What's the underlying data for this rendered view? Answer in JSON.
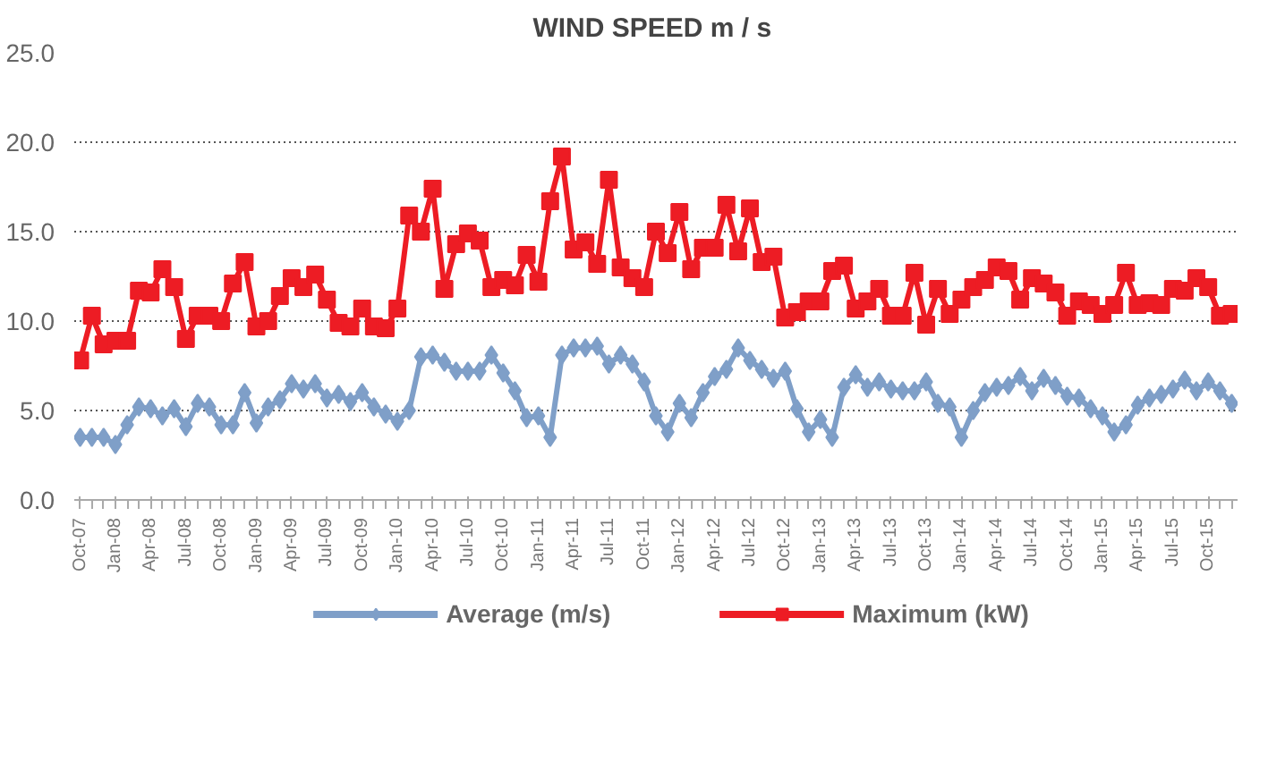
{
  "chart_data": {
    "type": "line",
    "title": "WIND SPEED  m / s",
    "categories": [
      "Oct-07",
      null,
      null,
      "Jan-08",
      null,
      null,
      "Apr-08",
      null,
      null,
      "Jul-08",
      null,
      null,
      "Oct-08",
      null,
      null,
      "Jan-09",
      null,
      null,
      "Apr-09",
      null,
      null,
      "Jul-09",
      null,
      null,
      "Oct-09",
      null,
      null,
      "Jan-10",
      null,
      null,
      "Apr-10",
      null,
      null,
      "Jul-10",
      null,
      null,
      "Oct-10",
      null,
      null,
      "Jan-11",
      null,
      null,
      "Apr-11",
      null,
      null,
      "Jul-11",
      null,
      null,
      "Oct-11",
      null,
      null,
      "Jan-12",
      null,
      null,
      "Apr-12",
      null,
      null,
      "Jul-12",
      null,
      null,
      "Oct-12",
      null,
      null,
      "Jan-13",
      null,
      null,
      "Apr-13",
      null,
      null,
      "Jul-13",
      null,
      null,
      "Oct-13",
      null,
      null,
      "Jan-14",
      null,
      null,
      "Apr-14",
      null,
      null,
      "Jul-14",
      null,
      null,
      "Oct-14",
      null,
      null,
      "Jan-15",
      null,
      null,
      "Apr-15",
      null,
      null,
      "Jul-15",
      null,
      null,
      "Oct-15",
      null,
      null
    ],
    "series": [
      {
        "name": "Average (m/s)",
        "color": "#7f9fc8",
        "marker": "diamond",
        "values": [
          3.5,
          3.5,
          3.5,
          3.1,
          4.2,
          5.2,
          5.1,
          4.7,
          5.1,
          4.1,
          5.4,
          5.2,
          4.2,
          4.2,
          6.0,
          4.3,
          5.2,
          5.6,
          6.5,
          6.2,
          6.5,
          5.7,
          5.9,
          5.5,
          6.0,
          5.2,
          4.8,
          4.4,
          5.0,
          8.0,
          8.1,
          7.7,
          7.2,
          7.2,
          7.2,
          8.1,
          7.1,
          6.1,
          4.6,
          4.7,
          3.5,
          8.1,
          8.5,
          8.5,
          8.6,
          7.6,
          8.1,
          7.6,
          6.6,
          4.7,
          3.8,
          5.4,
          4.6,
          6.0,
          6.9,
          7.3,
          8.5,
          7.8,
          7.3,
          6.8,
          7.2,
          5.1,
          3.8,
          4.5,
          3.5,
          6.3,
          7.0,
          6.3,
          6.6,
          6.2,
          6.1,
          6.1,
          6.6,
          5.4,
          5.2,
          3.5,
          5.0,
          6.0,
          6.3,
          6.4,
          6.9,
          6.1,
          6.8,
          6.4,
          5.8,
          5.7,
          5.1,
          4.7,
          3.8,
          4.2,
          5.3,
          5.7,
          5.9,
          6.2,
          6.7,
          6.1,
          6.6,
          6.1,
          5.4
        ]
      },
      {
        "name": "Maximum (kW)",
        "color": "#ed1c24",
        "marker": "square",
        "values": [
          7.8,
          10.3,
          8.7,
          8.9,
          8.9,
          11.7,
          11.6,
          12.9,
          11.9,
          9.0,
          10.3,
          10.3,
          10.0,
          12.1,
          13.3,
          9.7,
          10.0,
          11.4,
          12.4,
          11.9,
          12.6,
          11.2,
          9.9,
          9.7,
          10.7,
          9.7,
          9.6,
          10.7,
          15.9,
          15.0,
          17.4,
          11.8,
          14.3,
          14.9,
          14.5,
          11.9,
          12.3,
          12.0,
          13.7,
          12.2,
          16.7,
          19.2,
          14.0,
          14.4,
          13.2,
          17.9,
          13.0,
          12.4,
          11.9,
          15.0,
          13.8,
          16.1,
          12.9,
          14.1,
          14.1,
          16.5,
          13.9,
          16.3,
          13.3,
          13.6,
          10.2,
          10.5,
          11.1,
          11.1,
          12.8,
          13.1,
          10.7,
          11.1,
          11.8,
          10.3,
          10.3,
          12.7,
          9.8,
          11.8,
          10.4,
          11.2,
          11.9,
          12.3,
          13.0,
          12.8,
          11.2,
          12.4,
          12.1,
          11.6,
          10.3,
          11.1,
          10.9,
          10.4,
          10.9,
          12.7,
          10.9,
          11.0,
          10.9,
          11.8,
          11.7,
          12.4,
          11.9,
          10.3,
          10.4
        ]
      }
    ],
    "ylim": [
      0,
      25
    ],
    "yticks": [
      {
        "value": 0,
        "label": "0.0"
      },
      {
        "value": 5,
        "label": "5.0"
      },
      {
        "value": 10,
        "label": "10.0"
      },
      {
        "value": 15,
        "label": "15.0"
      },
      {
        "value": 20,
        "label": "20.0"
      },
      {
        "value": 25,
        "label": "25.0"
      }
    ],
    "grid": "y",
    "legend": "bottom"
  }
}
